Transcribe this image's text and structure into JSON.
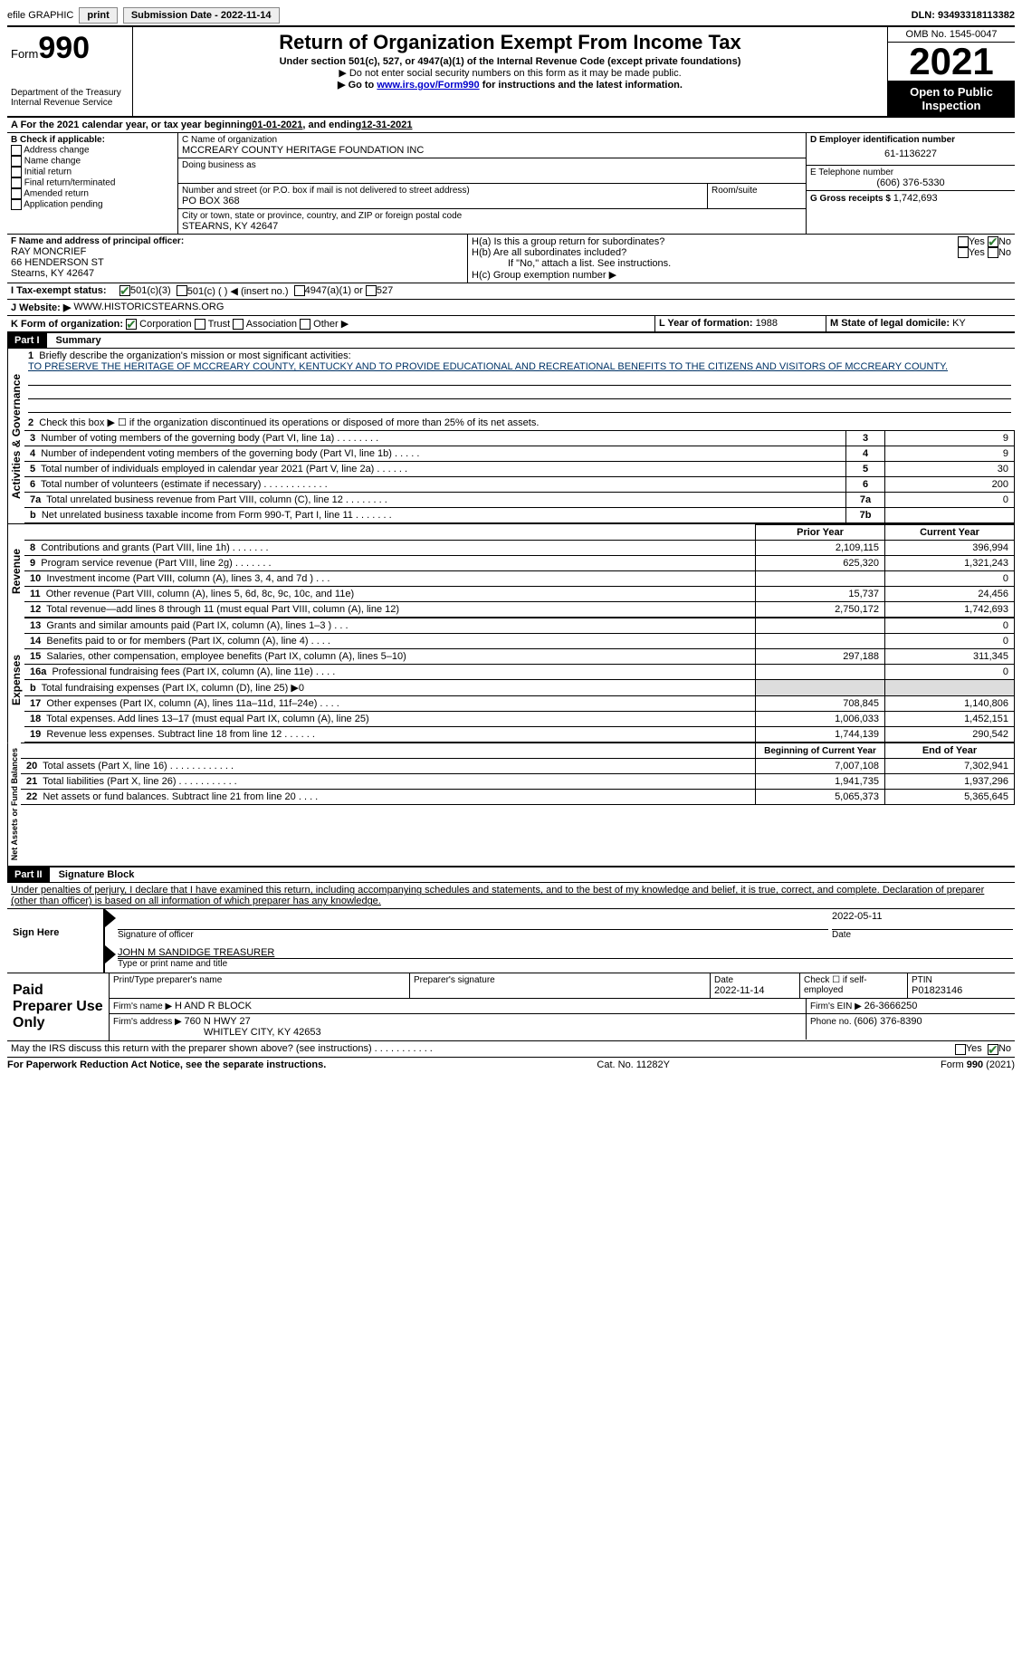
{
  "topbar": {
    "efile": "efile GRAPHIC",
    "print": "print",
    "subdate_label": "Submission Date - ",
    "subdate": "2022-11-14",
    "dln_label": "DLN: ",
    "dln": "93493318113382"
  },
  "header": {
    "form_word": "Form",
    "form_num": "990",
    "dept": "Department of the Treasury",
    "irs": "Internal Revenue Service",
    "title": "Return of Organization Exempt From Income Tax",
    "sub": "Under section 501(c), 527, or 4947(a)(1) of the Internal Revenue Code (except private foundations)",
    "nossn": "▶ Do not enter social security numbers on this form as it may be made public.",
    "goto_pre": "▶ Go to ",
    "goto_link": "www.irs.gov/Form990",
    "goto_post": " for instructions and the latest information.",
    "omb": "OMB No. 1545-0047",
    "year": "2021",
    "open": "Open to Public Inspection"
  },
  "A": {
    "text": "A For the 2021 calendar year, or tax year beginning ",
    "begin": "01-01-2021",
    "mid": ", and ending ",
    "end": "12-31-2021"
  },
  "B": {
    "label": "B Check if applicable:",
    "items": [
      "Address change",
      "Name change",
      "Initial return",
      "Final return/terminated",
      "Amended return",
      "Application pending"
    ]
  },
  "C": {
    "name_label": "C Name of organization",
    "name": "MCCREARY COUNTY HERITAGE FOUNDATION INC",
    "dba_label": "Doing business as",
    "street_label": "Number and street (or P.O. box if mail is not delivered to street address)",
    "room_label": "Room/suite",
    "street": "PO BOX 368",
    "city_label": "City or town, state or province, country, and ZIP or foreign postal code",
    "city": "STEARNS, KY  42647"
  },
  "D": {
    "label": "D Employer identification number",
    "value": "61-1136227"
  },
  "E": {
    "label": "E Telephone number",
    "value": "(606) 376-5330"
  },
  "G": {
    "label": "G Gross receipts $ ",
    "value": "1,742,693"
  },
  "F": {
    "label": "F  Name and address of principal officer:",
    "name": "RAY MONCRIEF",
    "addr1": "66 HENDERSON ST",
    "addr2": "Stearns, KY  42647"
  },
  "H": {
    "a": "H(a)  Is this a group return for subordinates?",
    "b": "H(b)  Are all subordinates included?",
    "bnote": "If \"No,\" attach a list. See instructions.",
    "c": "H(c)  Group exemption number ▶",
    "yes": "Yes",
    "no": "No"
  },
  "I": {
    "label": "I  Tax-exempt status:",
    "o1": "501(c)(3)",
    "o2": "501(c) (  ) ◀ (insert no.)",
    "o3": "4947(a)(1) or",
    "o4": "527"
  },
  "J": {
    "label": "J  Website: ▶",
    "value": "WWW.HISTORICSTEARNS.ORG"
  },
  "K": {
    "label": "K Form of organization:",
    "corp": "Corporation",
    "trust": "Trust",
    "assoc": "Association",
    "other": "Other ▶"
  },
  "L": {
    "label": "L Year of formation: ",
    "value": "1988"
  },
  "M": {
    "label": "M State of legal domicile: ",
    "value": "KY"
  },
  "parts": {
    "p1": "Part I",
    "p1t": "Summary",
    "p2": "Part II",
    "p2t": "Signature Block"
  },
  "tabs": {
    "ag": "Activities & Governance",
    "rev": "Revenue",
    "exp": "Expenses",
    "na": "Net Assets or Fund Balances"
  },
  "summary": {
    "l1": "Briefly describe the organization's mission or most significant activities:",
    "mission": "TO PRESERVE THE HERITAGE OF MCCREARY COUNTY, KENTUCKY AND TO PROVIDE EDUCATIONAL AND RECREATIONAL BENEFITS TO THE CITIZENS AND VISITORS OF MCCREARY COUNTY.",
    "l2": "Check this box ▶ ☐ if the organization discontinued its operations or disposed of more than 25% of its net assets.",
    "rows_ag": [
      {
        "n": "3",
        "t": "Number of voting members of the governing body (Part VI, line 1a)   .     .     .     .     .     .     .     .",
        "c": "3",
        "v": "9"
      },
      {
        "n": "4",
        "t": "Number of independent voting members of the governing body (Part VI, line 1b)   .     .     .     .     .",
        "c": "4",
        "v": "9"
      },
      {
        "n": "5",
        "t": "Total number of individuals employed in calendar year 2021 (Part V, line 2a)   .     .     .     .     .     .",
        "c": "5",
        "v": "30"
      },
      {
        "n": "6",
        "t": "Total number of volunteers (estimate if necessary)    .     .     .     .     .     .     .     .     .     .     .     .",
        "c": "6",
        "v": "200"
      },
      {
        "n": "7a",
        "t": "Total unrelated business revenue from Part VIII, column (C), line 12   .     .     .     .     .     .     .     .",
        "c": "7a",
        "v": "0"
      },
      {
        "n": "b",
        "t": "Net unrelated business taxable income from Form 990-T, Part I, line 11   .     .     .     .     .     .     .",
        "c": "7b",
        "v": ""
      }
    ],
    "colhdr": {
      "prior": "Prior Year",
      "current": "Current Year"
    },
    "rows_rev": [
      {
        "n": "8",
        "t": "Contributions and grants (Part VIII, line 1h)   .     .     .     .     .     .     .",
        "p": "2,109,115",
        "c": "396,994"
      },
      {
        "n": "9",
        "t": "Program service revenue (Part VIII, line 2g)   .     .     .     .     .     .     .",
        "p": "625,320",
        "c": "1,321,243"
      },
      {
        "n": "10",
        "t": "Investment income (Part VIII, column (A), lines 3, 4, and 7d )   .     .     .",
        "p": "",
        "c": "0"
      },
      {
        "n": "11",
        "t": "Other revenue (Part VIII, column (A), lines 5, 6d, 8c, 9c, 10c, and 11e)",
        "p": "15,737",
        "c": "24,456"
      },
      {
        "n": "12",
        "t": "Total revenue—add lines 8 through 11 (must equal Part VIII, column (A), line 12)",
        "p": "2,750,172",
        "c": "1,742,693"
      }
    ],
    "rows_exp": [
      {
        "n": "13",
        "t": "Grants and similar amounts paid (Part IX, column (A), lines 1–3 )   .     .     .",
        "p": "",
        "c": "0"
      },
      {
        "n": "14",
        "t": "Benefits paid to or for members (Part IX, column (A), line 4)   .     .     .     .",
        "p": "",
        "c": "0"
      },
      {
        "n": "15",
        "t": "Salaries, other compensation, employee benefits (Part IX, column (A), lines 5–10)",
        "p": "297,188",
        "c": "311,345"
      },
      {
        "n": "16a",
        "t": "Professional fundraising fees (Part IX, column (A), line 11e)   .     .     .     .",
        "p": "",
        "c": "0"
      },
      {
        "n": "b",
        "t": "Total fundraising expenses (Part IX, column (D), line 25) ▶0",
        "p": "__shade__",
        "c": "__shade__"
      },
      {
        "n": "17",
        "t": "Other expenses (Part IX, column (A), lines 11a–11d, 11f–24e)   .     .     .     .",
        "p": "708,845",
        "c": "1,140,806"
      },
      {
        "n": "18",
        "t": "Total expenses. Add lines 13–17 (must equal Part IX, column (A), line 25)",
        "p": "1,006,033",
        "c": "1,452,151"
      },
      {
        "n": "19",
        "t": "Revenue less expenses. Subtract line 18 from line 12   .     .     .     .     .     .",
        "p": "1,744,139",
        "c": "290,542"
      }
    ],
    "nahdr": {
      "begin": "Beginning of Current Year",
      "end": "End of Year"
    },
    "rows_na": [
      {
        "n": "20",
        "t": "Total assets (Part X, line 16)   .     .     .     .     .     .     .     .     .     .     .     .",
        "p": "7,007,108",
        "c": "7,302,941"
      },
      {
        "n": "21",
        "t": "Total liabilities (Part X, line 26)   .     .     .     .     .     .     .     .     .     .     .",
        "p": "1,941,735",
        "c": "1,937,296"
      },
      {
        "n": "22",
        "t": "Net assets or fund balances. Subtract line 21 from line 20   .     .     .     .",
        "p": "5,065,373",
        "c": "5,365,645"
      }
    ]
  },
  "sig": {
    "perjury": "Under penalties of perjury, I declare that I have examined this return, including accompanying schedules and statements, and to the best of my knowledge and belief, it is true, correct, and complete. Declaration of preparer (other than officer) is based on all information of which preparer has any knowledge.",
    "signhere": "Sign Here",
    "sigline": "Signature of officer",
    "date": "Date",
    "sigdate": "2022-05-11",
    "name": "JOHN M SANDIDGE  TREASURER",
    "nameline": "Type or print name and title",
    "paid": "Paid Preparer Use Only",
    "pname": "Print/Type preparer's name",
    "psig": "Preparer's signature",
    "pdate_l": "Date",
    "pdate": "2022-11-14",
    "pcheck": "Check ☐ if self-employed",
    "ptin_l": "PTIN",
    "ptin": "P01823146",
    "firm_l": "Firm's name    ▶ ",
    "firm": "H AND R BLOCK",
    "ein_l": "Firm's EIN ▶ ",
    "ein": "26-3666250",
    "faddr_l": "Firm's address ▶ ",
    "faddr1": "760 N HWY 27",
    "faddr2": "WHITLEY CITY, KY  42653",
    "phone_l": "Phone no. ",
    "phone": "(606) 376-8390",
    "discuss": "May the IRS discuss this return with the preparer shown above? (see instructions)   .     .     .     .     .     .     .     .     .     .     ."
  },
  "footer": {
    "pra": "For Paperwork Reduction Act Notice, see the separate instructions.",
    "cat": "Cat. No. 11282Y",
    "form": "Form 990 (2021)"
  }
}
